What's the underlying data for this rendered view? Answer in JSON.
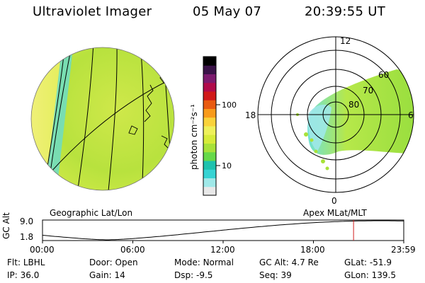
{
  "header": {
    "instrument": "Ultraviolet Imager",
    "date": "05 May 07",
    "time": "20:39:55 UT"
  },
  "left_panel": {
    "caption": "Geographic Lat/Lon"
  },
  "right_panel": {
    "caption": "Apex MLat/MLT",
    "mlt_labels": [
      "12",
      "18",
      "6",
      "0"
    ],
    "lat_labels": [
      "60",
      "70",
      "80"
    ]
  },
  "colorbar": {
    "unit_label": "photon cm⁻²s⁻¹",
    "tick_labels": [
      "100",
      "10"
    ],
    "colors": [
      "#e8e8e8",
      "#9fe8e8",
      "#36d3d3",
      "#1fc2ae",
      "#66d94a",
      "#a8e23a",
      "#d7eb3a",
      "#eef05a",
      "#f9d23a",
      "#f89a1a",
      "#e85a10",
      "#d01818",
      "#b00a4a",
      "#7c1a6e",
      "#3a1248",
      "#000000"
    ]
  },
  "altitude_plot": {
    "ylabel": "GC Alt",
    "ytick_labels": [
      "9.0",
      "1.8"
    ],
    "xtick_labels": [
      "00:00",
      "06:00",
      "12:00",
      "18:00",
      "23:59"
    ],
    "current_time_hours": 20.665
  },
  "footer": {
    "row1": [
      {
        "label": "Flt:",
        "value": "LBHL"
      },
      {
        "label": "Door:",
        "value": "Open"
      },
      {
        "label": "Mode:",
        "value": "Normal"
      },
      {
        "label": "GC Alt:",
        "value": "4.7 Re"
      },
      {
        "label": "GLat:",
        "value": "-51.9"
      }
    ],
    "row2": [
      {
        "label": "IP:",
        "value": "36.0"
      },
      {
        "label": "Gain:",
        "value": "14"
      },
      {
        "label": "Dsp:",
        "value": "-9.5"
      },
      {
        "label": "Seq:",
        "value": "39"
      },
      {
        "label": "GLon:",
        "value": "139.5"
      }
    ]
  }
}
